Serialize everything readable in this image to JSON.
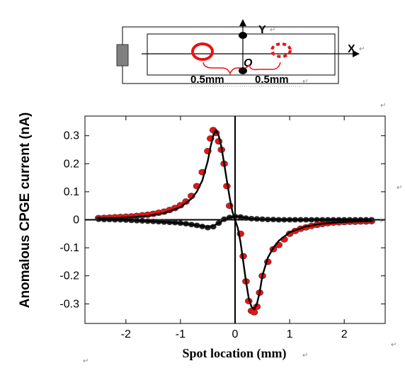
{
  "diagram": {
    "axis_x_label": "X",
    "axis_y_label": "Y",
    "origin_label": "O",
    "left_distance": "0.5mm",
    "right_distance": "0.5mm",
    "colors": {
      "spot": "#ee1111",
      "electrode": "#808080"
    }
  },
  "paragraph_marks": [
    "↵",
    "↵",
    "↵",
    "↵",
    "↵",
    "↵",
    "↵",
    "↵",
    "↵"
  ],
  "chart_data": {
    "type": "scatter",
    "xlabel": "Spot location (mm)",
    "ylabel": "Anomalous CPGE current (nA)",
    "xlim": [
      -2.75,
      2.75
    ],
    "ylim": [
      -0.37,
      0.37
    ],
    "xticks": [
      -2,
      -1,
      0,
      1,
      2
    ],
    "xtick_labels": [
      "-2",
      "-1",
      "0",
      "1",
      "2"
    ],
    "yticks": [
      -0.3,
      -0.2,
      -0.1,
      0,
      0.1,
      0.2,
      0.3
    ],
    "ytick_labels": [
      "-0.3",
      "-0.2",
      "-0.1",
      "0",
      "0.1",
      "0.2",
      "0.3"
    ],
    "grid": false,
    "series": [
      {
        "color": "#ee1111",
        "marker": "circle",
        "x": [
          -2.5,
          -2.4,
          -2.3,
          -2.2,
          -2.1,
          -2.0,
          -1.9,
          -1.8,
          -1.7,
          -1.6,
          -1.5,
          -1.4,
          -1.3,
          -1.2,
          -1.1,
          -1.0,
          -0.9,
          -0.8,
          -0.7,
          -0.6,
          -0.5,
          -0.45,
          -0.4,
          -0.35,
          -0.3,
          -0.25,
          -0.2,
          -0.15,
          -0.1,
          0.1,
          0.15,
          0.2,
          0.25,
          0.3,
          0.35,
          0.4,
          0.45,
          0.5,
          0.6,
          0.7,
          0.8,
          0.9,
          1.0,
          1.1,
          1.2,
          1.3,
          1.4,
          1.5,
          1.6,
          1.7,
          1.8,
          1.9,
          2.0,
          2.1,
          2.2,
          2.3,
          2.4,
          2.5
        ],
        "y": [
          0.006,
          0.007,
          0.008,
          0.009,
          0.01,
          0.011,
          0.012,
          0.014,
          0.016,
          0.018,
          0.021,
          0.025,
          0.029,
          0.035,
          0.042,
          0.052,
          0.065,
          0.085,
          0.12,
          0.17,
          0.245,
          0.29,
          0.32,
          0.31,
          0.28,
          0.25,
          0.2,
          0.12,
          0.05,
          -0.05,
          -0.13,
          -0.22,
          -0.29,
          -0.325,
          -0.33,
          -0.31,
          -0.26,
          -0.2,
          -0.15,
          -0.105,
          -0.09,
          -0.07,
          -0.05,
          -0.04,
          -0.032,
          -0.027,
          -0.022,
          -0.018,
          -0.015,
          -0.012,
          -0.01,
          -0.009,
          -0.008,
          -0.007,
          -0.007,
          -0.006,
          -0.006,
          -0.005
        ]
      },
      {
        "color": "#222222",
        "marker": "circle",
        "x": [
          -2.5,
          -2.4,
          -2.3,
          -2.2,
          -2.1,
          -2.0,
          -1.9,
          -1.8,
          -1.7,
          -1.6,
          -1.5,
          -1.4,
          -1.3,
          -1.2,
          -1.1,
          -1.0,
          -0.9,
          -0.8,
          -0.7,
          -0.6,
          -0.5,
          -0.4,
          -0.3,
          -0.2,
          -0.1,
          0.0,
          0.1,
          0.2,
          0.3,
          0.4,
          0.5,
          0.6,
          0.7,
          0.8,
          0.9,
          1.0,
          1.1,
          1.2,
          1.3,
          1.4,
          1.5,
          1.6,
          1.7,
          1.8,
          1.9,
          2.0,
          2.1,
          2.2,
          2.3,
          2.4,
          2.5
        ],
        "y": [
          0.002,
          0.001,
          0.001,
          0.0,
          0.0,
          -0.001,
          -0.002,
          -0.003,
          -0.004,
          -0.005,
          -0.006,
          -0.007,
          -0.008,
          -0.009,
          -0.01,
          -0.012,
          -0.014,
          -0.017,
          -0.02,
          -0.024,
          -0.028,
          -0.025,
          -0.012,
          0.002,
          0.008,
          0.012,
          0.01,
          0.006,
          0.004,
          0.003,
          0.002,
          0.001,
          0.001,
          0.0,
          0.0,
          0.0,
          0.0,
          0.0,
          0.0,
          0.0,
          0.0,
          0.0,
          0.0,
          0.0,
          0.0,
          0.0,
          0.0,
          0.0,
          0.0,
          0.0,
          0.0
        ]
      },
      {
        "color": "#000000",
        "marker": "none",
        "x": [
          -2.5,
          -2.2,
          -1.9,
          -1.6,
          -1.3,
          -1.0,
          -0.8,
          -0.7,
          -0.6,
          -0.5,
          -0.45,
          -0.4,
          -0.35,
          -0.3,
          -0.25,
          -0.2,
          -0.15,
          -0.1,
          -0.05,
          0.0,
          0.05,
          0.1,
          0.15,
          0.2,
          0.25,
          0.3,
          0.35,
          0.4,
          0.45,
          0.5,
          0.6,
          0.7,
          0.8,
          1.0,
          1.3,
          1.6,
          1.9,
          2.2,
          2.5
        ],
        "y": [
          0.004,
          0.006,
          0.009,
          0.014,
          0.024,
          0.045,
          0.075,
          0.1,
          0.14,
          0.21,
          0.26,
          0.3,
          0.32,
          0.3,
          0.26,
          0.2,
          0.14,
          0.08,
          0.03,
          0.0,
          -0.03,
          -0.08,
          -0.15,
          -0.22,
          -0.28,
          -0.31,
          -0.32,
          -0.3,
          -0.26,
          -0.2,
          -0.135,
          -0.1,
          -0.075,
          -0.045,
          -0.024,
          -0.014,
          -0.009,
          -0.006,
          -0.004
        ]
      },
      {
        "color": "#000000",
        "marker": "none",
        "x": [
          -2.5,
          -2.0,
          -1.5,
          -1.0,
          -0.7,
          -0.5,
          -0.4,
          -0.3,
          -0.2,
          -0.1,
          0.0,
          0.1,
          0.2,
          0.3,
          0.5,
          1.0,
          1.5,
          2.0,
          2.5
        ],
        "y": [
          0.001,
          0.0,
          -0.005,
          -0.012,
          -0.02,
          -0.025,
          -0.022,
          -0.012,
          0.0,
          0.008,
          0.012,
          0.01,
          0.006,
          0.003,
          0.001,
          0.0,
          0.0,
          0.0,
          0.0
        ]
      }
    ]
  }
}
